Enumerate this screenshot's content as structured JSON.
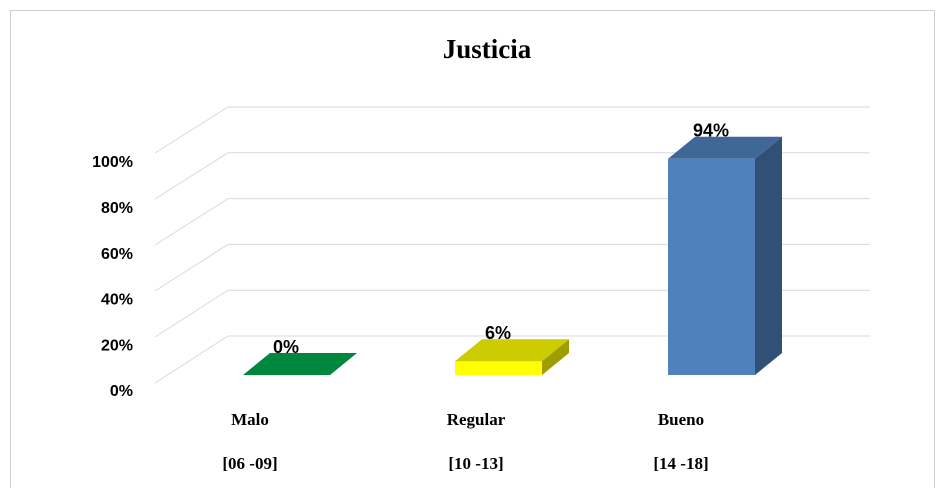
{
  "chart_data": {
    "type": "bar3d",
    "title": "Justicia",
    "categories": [
      "Malo",
      "Regular",
      "Bueno"
    ],
    "ranges": [
      "[06 -09]",
      "[10 -13]",
      "[14 -18]"
    ],
    "values": [
      0,
      6,
      94
    ],
    "value_labels": [
      "0%",
      "6%",
      "94%"
    ],
    "colors": [
      "#00873e",
      "#ffff00",
      "#4f81bd"
    ],
    "ylim": [
      0,
      100
    ],
    "yticks": [
      {
        "value": 0,
        "label": "0%"
      },
      {
        "value": 20,
        "label": "20%"
      },
      {
        "value": 40,
        "label": "40%"
      },
      {
        "value": 60,
        "label": "60%"
      },
      {
        "value": 80,
        "label": "80%"
      },
      {
        "value": 100,
        "label": "100%"
      }
    ],
    "grid": true
  }
}
